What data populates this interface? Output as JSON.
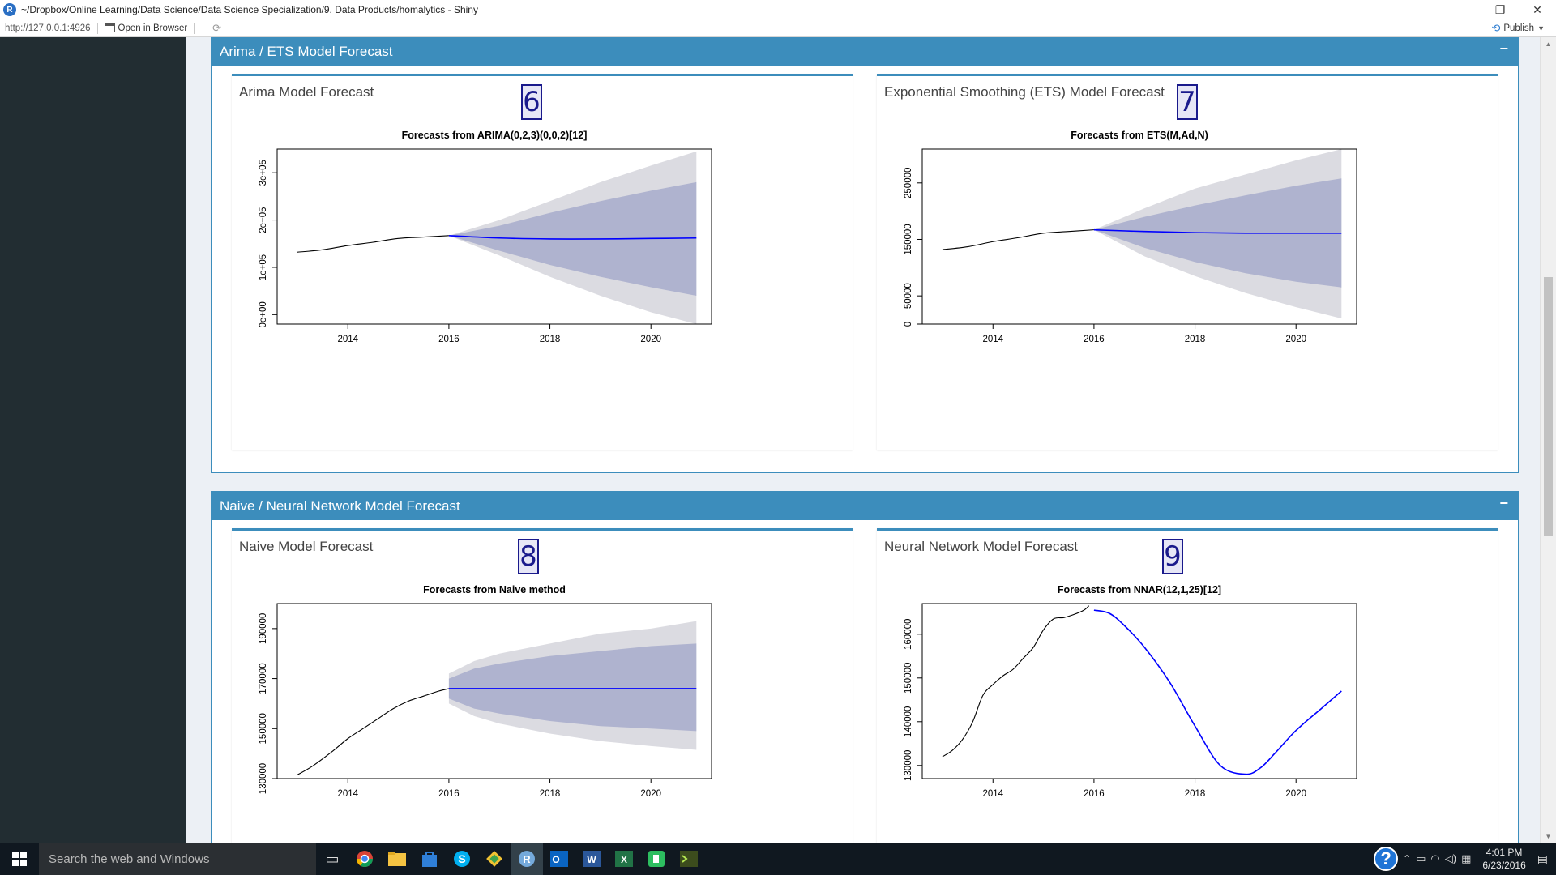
{
  "window": {
    "title": "~/Dropbox/Online Learning/Data Science/Data Science Specialization/9. Data Products/homalytics - Shiny",
    "app_icon": "rstudio-icon",
    "minimize": "–",
    "restore": "❐",
    "close": "✕"
  },
  "urlbar": {
    "url": "http://127.0.0.1:4926",
    "open_in_browser": "Open in Browser",
    "publish": "Publish"
  },
  "boxes": [
    {
      "title": "Arima / ETS Model Forecast",
      "collapse": "−",
      "panels": [
        {
          "title": "Arima Model Forecast",
          "badge": "6",
          "chart_data": {
            "type": "line",
            "title": "Forecasts from ARIMA(0,2,3)(0,0,2)[12]",
            "xlabel": "",
            "ylabel": "",
            "xlim": [
              2012.6,
              2021.2
            ],
            "ylim": [
              -20000,
              350000
            ],
            "x_ticks": [
              2014,
              2016,
              2018,
              2020
            ],
            "y_ticks": [
              0,
              100000,
              200000,
              300000
            ],
            "y_tick_labels": [
              "0e+00",
              "1e+05",
              "2e+05",
              "3e+05"
            ],
            "history": {
              "x": [
                2013.0,
                2013.5,
                2014.0,
                2014.5,
                2015.0,
                2015.5,
                2016.0
              ],
              "y": [
                132000,
                137000,
                146000,
                153000,
                161000,
                164000,
                167000
              ]
            },
            "forecast": {
              "x": [
                2016.0,
                2017.0,
                2018.0,
                2019.0,
                2020.0,
                2020.9
              ],
              "y": [
                167000,
                162000,
                160000,
                160000,
                161000,
                162000
              ]
            },
            "band95": {
              "x": [
                2016.0,
                2017.0,
                2018.0,
                2019.0,
                2020.0,
                2020.9
              ],
              "lower": [
                167000,
                125000,
                80000,
                40000,
                5000,
                -20000
              ],
              "upper": [
                167000,
                200000,
                240000,
                280000,
                315000,
                345000
              ]
            },
            "band80": {
              "x": [
                2016.0,
                2017.0,
                2018.0,
                2019.0,
                2020.0,
                2020.9
              ],
              "lower": [
                167000,
                135000,
                105000,
                80000,
                58000,
                40000
              ],
              "upper": [
                167000,
                188000,
                215000,
                240000,
                262000,
                280000
              ]
            }
          }
        },
        {
          "title": "Exponential Smoothing (ETS) Model Forecast",
          "badge": "7",
          "chart_data": {
            "type": "line",
            "title": "Forecasts from ETS(M,Ad,N)",
            "xlabel": "",
            "ylabel": "",
            "xlim": [
              2012.6,
              2021.2
            ],
            "ylim": [
              0,
              310000
            ],
            "x_ticks": [
              2014,
              2016,
              2018,
              2020
            ],
            "y_ticks": [
              0,
              50000,
              150000,
              250000
            ],
            "y_tick_labels": [
              "0",
              "50000",
              "150000",
              "250000"
            ],
            "history": {
              "x": [
                2013.0,
                2013.5,
                2014.0,
                2014.5,
                2015.0,
                2015.5,
                2016.0
              ],
              "y": [
                132000,
                137000,
                146000,
                153000,
                161000,
                164000,
                167000
              ]
            },
            "forecast": {
              "x": [
                2016.0,
                2017.0,
                2018.0,
                2019.0,
                2020.0,
                2020.9
              ],
              "y": [
                167000,
                164000,
                162000,
                161000,
                161000,
                161000
              ]
            },
            "band95": {
              "x": [
                2016.0,
                2017.0,
                2018.0,
                2019.0,
                2020.0,
                2020.9
              ],
              "lower": [
                167000,
                120000,
                85000,
                55000,
                30000,
                10000
              ],
              "upper": [
                167000,
                205000,
                240000,
                265000,
                290000,
                310000
              ]
            },
            "band80": {
              "x": [
                2016.0,
                2017.0,
                2018.0,
                2019.0,
                2020.0,
                2020.9
              ],
              "lower": [
                167000,
                135000,
                110000,
                90000,
                75000,
                65000
              ],
              "upper": [
                167000,
                190000,
                210000,
                228000,
                245000,
                258000
              ]
            }
          }
        }
      ]
    },
    {
      "title": "Naive / Neural Network Model Forecast",
      "collapse": "−",
      "panels": [
        {
          "title": "Naive Model Forecast",
          "badge": "8",
          "chart_data": {
            "type": "line",
            "title": "Forecasts from Naive method",
            "xlabel": "",
            "ylabel": "",
            "xlim": [
              2012.6,
              2021.2
            ],
            "ylim": [
              130000,
              200000
            ],
            "x_ticks": [
              2014,
              2016,
              2018,
              2020
            ],
            "y_ticks": [
              130000,
              150000,
              170000,
              190000
            ],
            "y_tick_labels": [
              "130000",
              "150000",
              "170000",
              "190000"
            ],
            "history": {
              "x": [
                2013.0,
                2013.3,
                2013.7,
                2014.0,
                2014.3,
                2014.6,
                2014.9,
                2015.2,
                2015.5,
                2015.8,
                2016.0
              ],
              "y": [
                131500,
                135000,
                141000,
                146000,
                150000,
                154000,
                158000,
                161000,
                163000,
                165000,
                166000
              ]
            },
            "forecast": {
              "x": [
                2016.0,
                2020.9
              ],
              "y": [
                166000,
                166000
              ]
            },
            "band95": {
              "x": [
                2016.0,
                2016.5,
                2017.0,
                2018.0,
                2019.0,
                2020.0,
                2020.9
              ],
              "lower": [
                160000,
                155000,
                152000,
                148000,
                145000,
                143000,
                141500
              ],
              "upper": [
                172000,
                177000,
                180000,
                184000,
                188000,
                190000,
                193000
              ]
            },
            "band80": {
              "x": [
                2016.0,
                2016.5,
                2017.0,
                2018.0,
                2019.0,
                2020.0,
                2020.9
              ],
              "lower": [
                162000,
                158000,
                156000,
                153000,
                151000,
                150000,
                149000
              ],
              "upper": [
                170000,
                174000,
                176000,
                179000,
                181000,
                183000,
                184000
              ]
            }
          }
        },
        {
          "title": "Neural Network Model Forecast",
          "badge": "9",
          "chart_data": {
            "type": "line",
            "title": "Forecasts from NNAR(12,1,25)[12]",
            "xlabel": "",
            "ylabel": "",
            "xlim": [
              2012.6,
              2021.2
            ],
            "ylim": [
              127000,
              167000
            ],
            "x_ticks": [
              2014,
              2016,
              2018,
              2020
            ],
            "y_ticks": [
              130000,
              140000,
              150000,
              160000
            ],
            "y_tick_labels": [
              "130000",
              "140000",
              "150000",
              "160000"
            ],
            "history": {
              "x": [
                2013.0,
                2013.2,
                2013.4,
                2013.6,
                2013.8,
                2014.0,
                2014.2,
                2014.4,
                2014.6,
                2014.8,
                2015.0,
                2015.2,
                2015.4,
                2015.6,
                2015.8,
                2015.9
              ],
              "y": [
                132000,
                133500,
                136000,
                140000,
                146000,
                148500,
                150500,
                152000,
                154500,
                157000,
                161000,
                163500,
                163800,
                164500,
                165500,
                166500
              ]
            },
            "forecast": {
              "x": [
                2016.0,
                2016.3,
                2016.6,
                2017.0,
                2017.5,
                2018.0,
                2018.5,
                2019.0,
                2019.3,
                2019.6,
                2020.0,
                2020.5,
                2020.9
              ],
              "y": [
                165500,
                164800,
                162000,
                157000,
                149000,
                139000,
                130000,
                128000,
                129500,
                133000,
                138000,
                143000,
                147000
              ]
            }
          }
        }
      ]
    }
  ],
  "taskbar": {
    "search_placeholder": "Search the web and Windows",
    "time": "4:01 PM",
    "date": "6/23/2016",
    "help": "?",
    "apps": [
      "task-view-icon",
      "chrome-icon",
      "file-explorer-icon",
      "store-icon",
      "skype-icon",
      "git-icon",
      "rstudio-icon",
      "outlook-icon",
      "word-icon",
      "excel-icon",
      "evernote-icon",
      "terminal-icon"
    ]
  },
  "colors": {
    "header_blue": "#3c8dbc",
    "sidebar_dark": "#222d32",
    "band95": "#dbdbe1",
    "band80": "#afb3cf",
    "forecast_line": "#0000ff"
  }
}
